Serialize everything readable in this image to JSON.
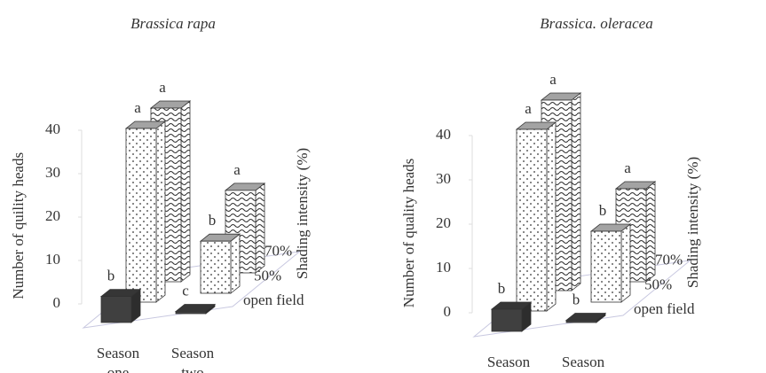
{
  "chart_data": [
    {
      "type": "bar3d",
      "title": "Brassica rapa",
      "y_label": "Number of quility heads",
      "z_label": "Shading intensity (%)",
      "categories": [
        "Season one",
        "Season two"
      ],
      "ylim": [
        0,
        40
      ],
      "yticks": [
        0,
        10,
        20,
        30,
        40
      ],
      "series": [
        {
          "name": "open field",
          "color": "#404040",
          "pattern": "solid",
          "values": [
            6,
            0.5
          ],
          "letters": [
            "b",
            "c"
          ]
        },
        {
          "name": "50%",
          "color": "#ffffff",
          "pattern": "dots",
          "values": [
            40,
            12
          ],
          "letters": [
            "a",
            "b"
          ]
        },
        {
          "name": "70%",
          "color": "#ffffff",
          "pattern": "waves",
          "values": [
            40,
            19
          ],
          "letters": [
            "a",
            "a"
          ]
        }
      ]
    },
    {
      "type": "bar3d",
      "title": "Brassica. oleracea",
      "y_label": "Number of quality heads",
      "z_label": "Shading intensity (%)",
      "categories": [
        "Season one",
        "Season two"
      ],
      "ylim": [
        0,
        40
      ],
      "yticks": [
        0,
        10,
        20,
        30,
        40
      ],
      "series": [
        {
          "name": "open field",
          "color": "#404040",
          "pattern": "solid",
          "values": [
            5,
            0.5
          ],
          "letters": [
            "b",
            "b"
          ]
        },
        {
          "name": "50%",
          "color": "#ffffff",
          "pattern": "dots",
          "values": [
            41,
            16
          ],
          "letters": [
            "a",
            "b"
          ]
        },
        {
          "name": "70%",
          "color": "#ffffff",
          "pattern": "waves",
          "values": [
            43,
            21
          ],
          "letters": [
            "a",
            "a"
          ]
        }
      ]
    }
  ]
}
